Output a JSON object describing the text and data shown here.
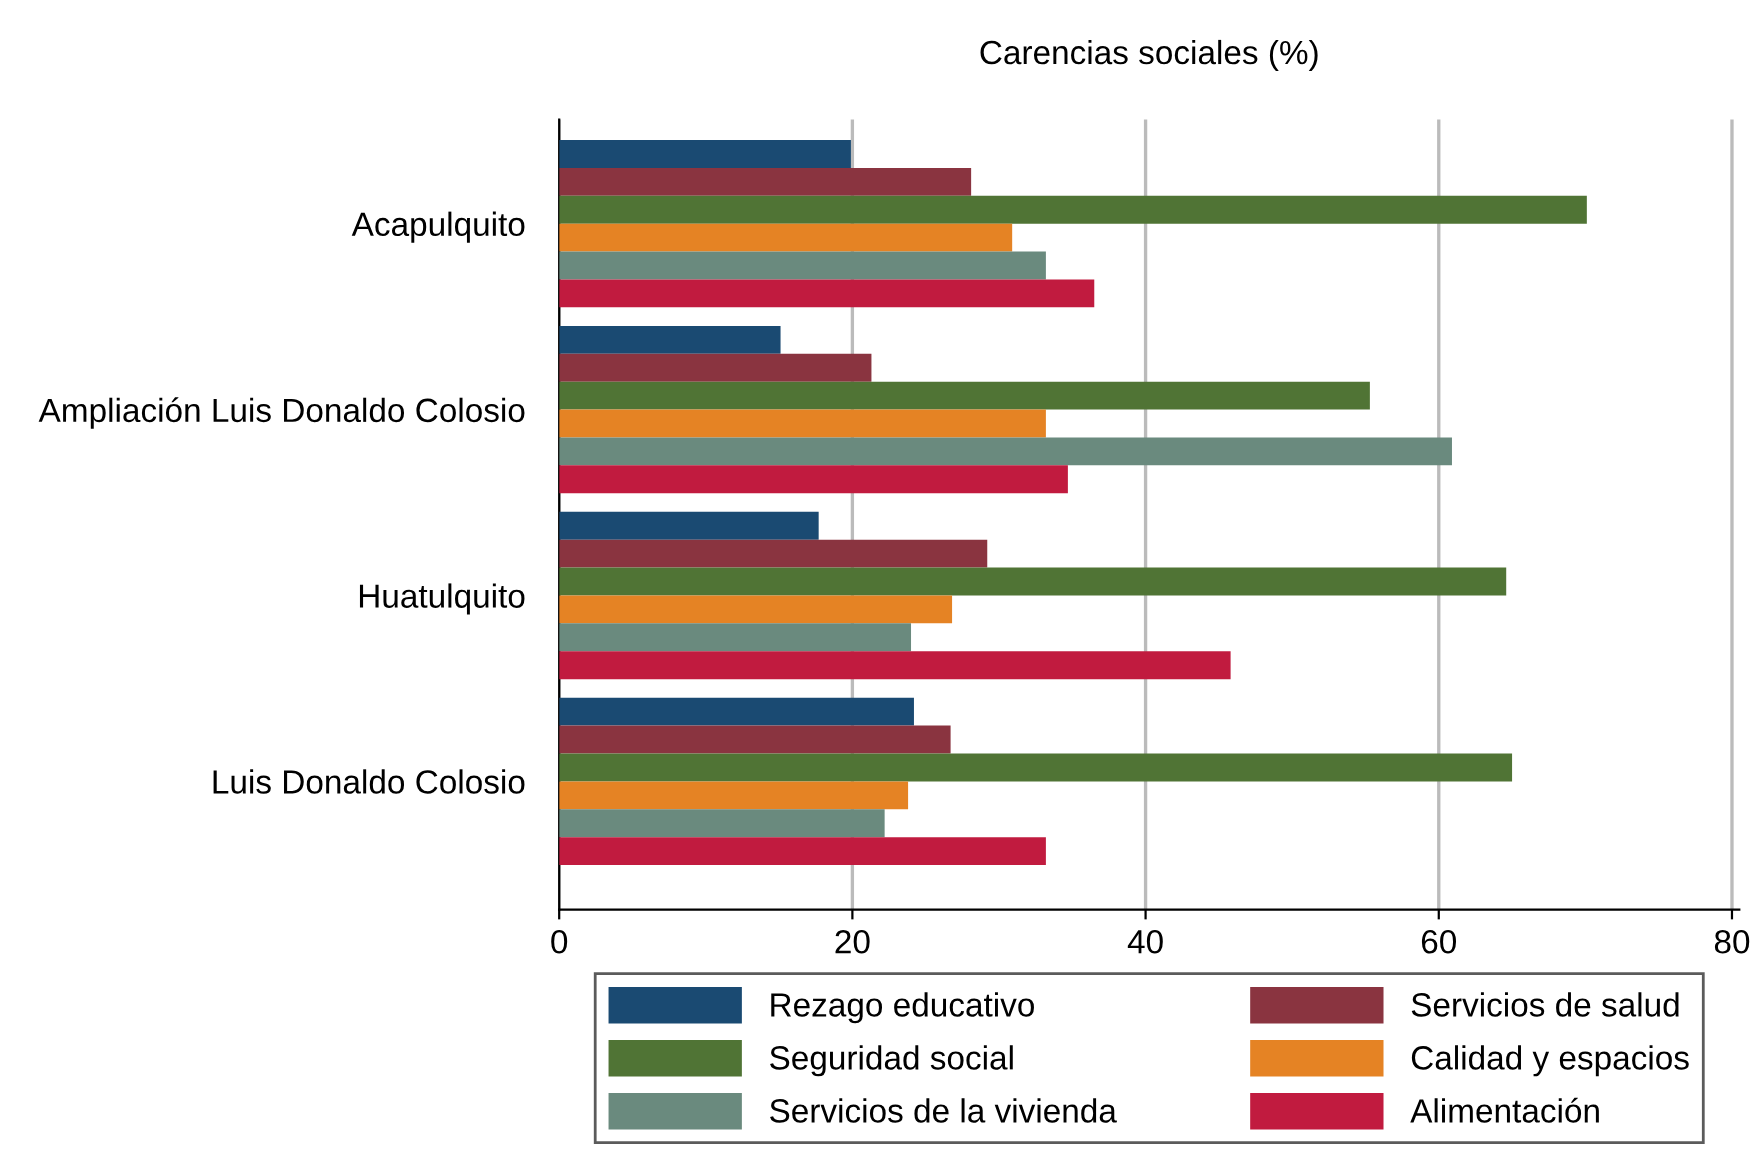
{
  "chart_data": {
    "type": "bar",
    "orientation": "horizontal",
    "title": "Carencias sociales (%)",
    "categories": [
      "Acapulquito",
      "Ampliación Luis Donaldo Colosio",
      "Huatulquito",
      "Luis Donaldo Colosio"
    ],
    "series": [
      {
        "name": "Rezago educativo",
        "color": "#1a4a72",
        "values": [
          19.9,
          15.1,
          17.7,
          24.2
        ]
      },
      {
        "name": "Servicios de salud",
        "color": "#8a3440",
        "values": [
          28.1,
          21.3,
          29.2,
          26.7
        ]
      },
      {
        "name": "Seguridad social",
        "color": "#507435",
        "values": [
          70.1,
          55.3,
          64.6,
          65.0
        ]
      },
      {
        "name": "Calidad y espacios",
        "color": "#e58324",
        "values": [
          30.9,
          33.2,
          26.8,
          23.8
        ]
      },
      {
        "name": "Servicios de la vivienda",
        "color": "#6a8a7e",
        "values": [
          33.2,
          60.9,
          24.0,
          22.2
        ]
      },
      {
        "name": "Alimentación",
        "color": "#c11b3f",
        "values": [
          36.5,
          34.7,
          45.8,
          33.2
        ]
      }
    ],
    "xlim": [
      0,
      80.5
    ],
    "xticks": [
      0,
      20,
      40,
      60,
      80
    ],
    "grid": "x",
    "legend": "bottom"
  }
}
